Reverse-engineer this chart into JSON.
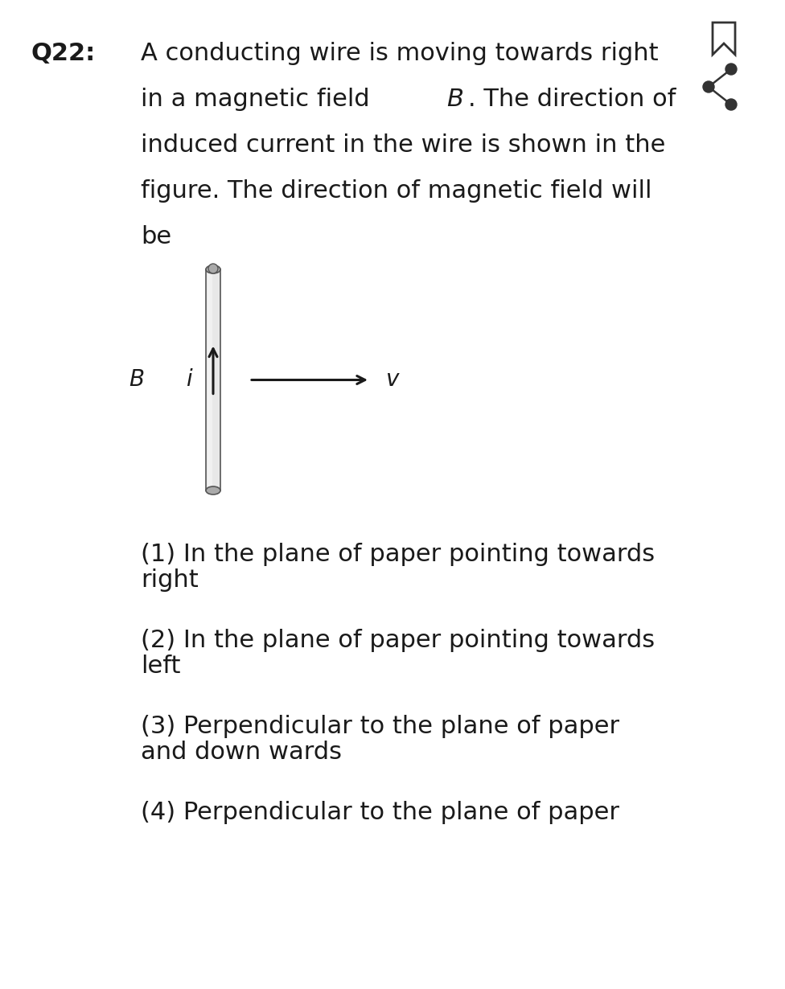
{
  "background_color": "#ffffff",
  "question_label": "Q22:",
  "q_line1": "A conducting wire is moving towards right",
  "q_line2_pre": "in a magnetic field ",
  "q_line2_B": "B",
  "q_line2_post": ". The direction of",
  "q_line3": "induced current in the wire is shown in the",
  "q_line4": "figure. The direction of magnetic field will",
  "q_line5": "be",
  "label_B": "B",
  "label_i": "i",
  "label_v": "v",
  "opt1_line1": "(1) In the plane of paper pointing towards",
  "opt1_line2": "right",
  "opt2_line1": "(2) In the plane of paper pointing towards",
  "opt2_line2": "left",
  "opt3_line1": "(3) Perpendicular to the plane of paper",
  "opt3_line2": "and down wards",
  "opt4_line1": "(4) Perpendicular to the plane of paper",
  "text_color": "#1a1a1a",
  "wire_body_color": "#e8e8e8",
  "wire_edge_color": "#555555",
  "wire_highlight_color": "#f5f5f5",
  "arrow_color": "#1a1a1a",
  "icon_color": "#333333"
}
